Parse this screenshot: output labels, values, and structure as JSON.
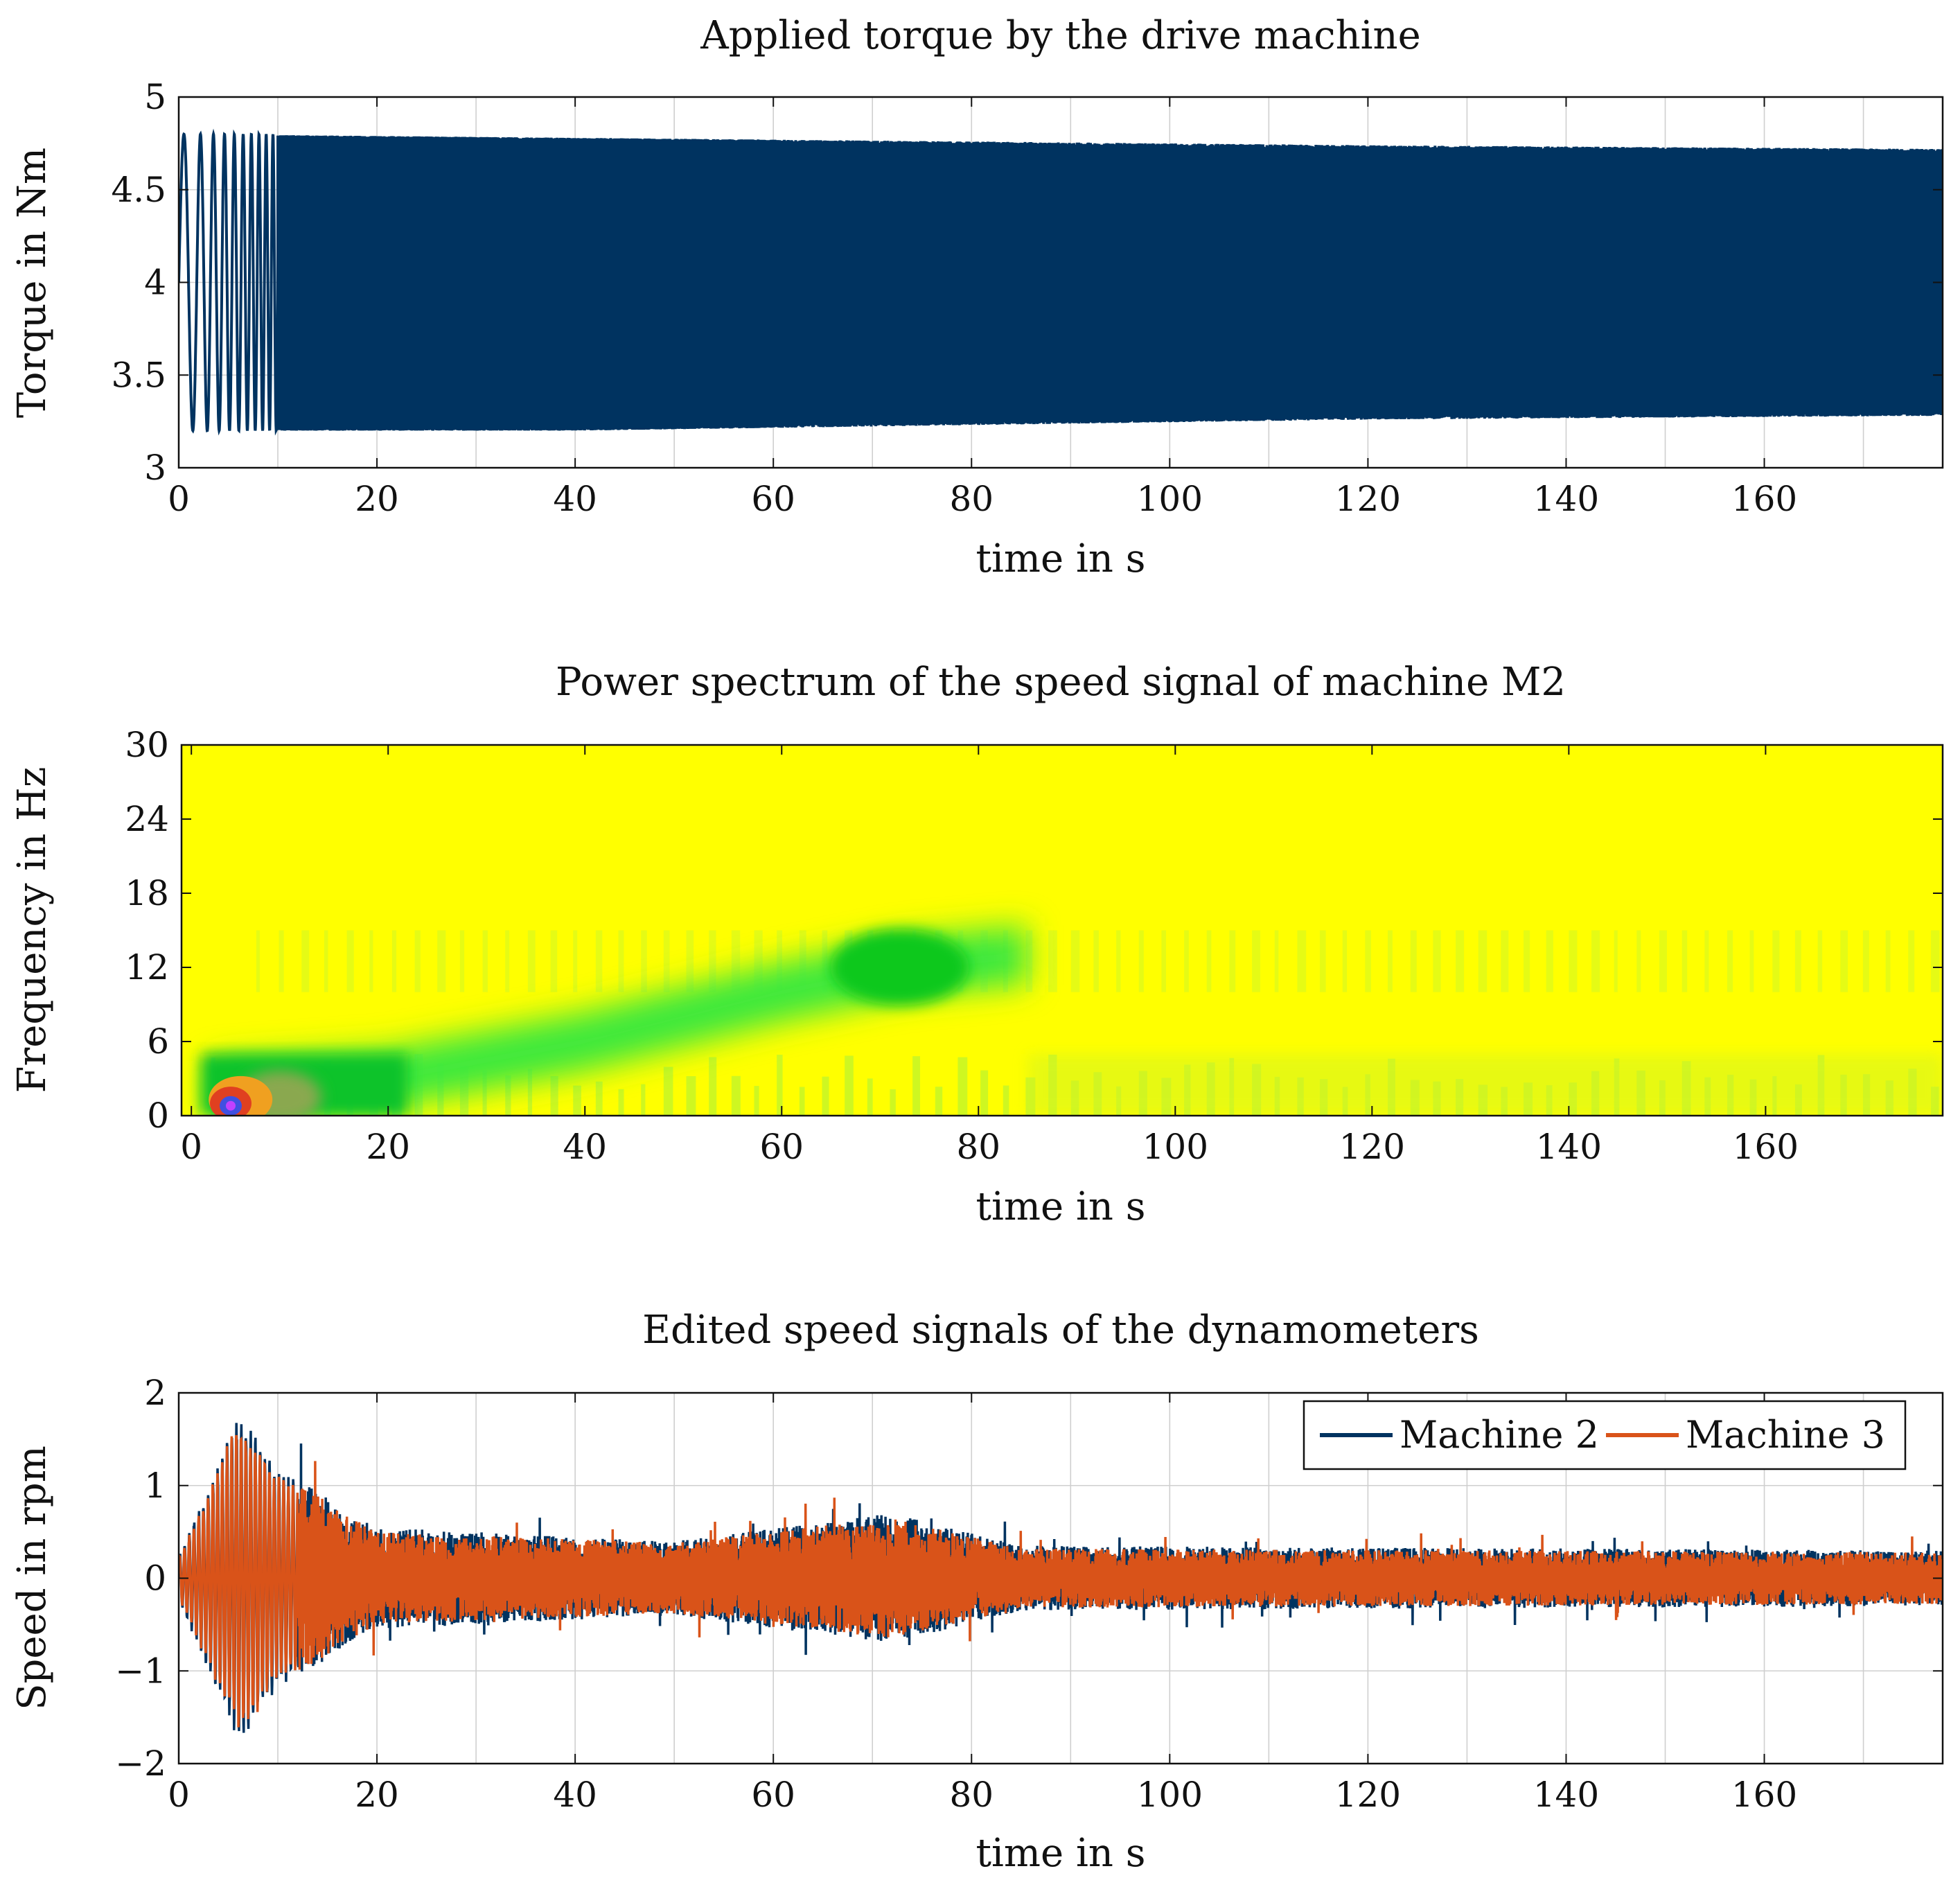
{
  "chart_data": [
    {
      "type": "line",
      "title": "Applied torque by the drive machine",
      "xlabel": "time in s",
      "ylabel": "Torque in Nm",
      "xlim": [
        0,
        178
      ],
      "ylim": [
        3,
        5
      ],
      "xticks": [
        "0",
        "20",
        "40",
        "60",
        "80",
        "100",
        "120",
        "140",
        "160"
      ],
      "xtick_values": [
        0,
        20,
        40,
        60,
        80,
        100,
        120,
        140,
        160
      ],
      "yticks": [
        "3",
        "3.5",
        "4",
        "4.5",
        "5"
      ],
      "ytick_values": [
        3,
        3.5,
        4,
        4.5,
        5
      ],
      "grid": true,
      "series": [
        {
          "color": "#003360",
          "mean": 4.0,
          "envelope": [
            {
              "t": 0,
              "min": 3.2,
              "max": 4.8
            },
            {
              "t": 40,
              "min": 3.2,
              "max": 4.78
            },
            {
              "t": 80,
              "min": 3.23,
              "max": 4.76
            },
            {
              "t": 120,
              "min": 3.26,
              "max": 4.74
            },
            {
              "t": 178,
              "min": 3.28,
              "max": 4.72
            }
          ]
        }
      ]
    },
    {
      "type": "heatmap",
      "title": "Power spectrum of the speed signal of machine M2",
      "xlabel": "time in s",
      "ylabel": "Frequency in Hz",
      "xlim": [
        -1,
        178
      ],
      "ylim": [
        0,
        30
      ],
      "xticks": [
        "0",
        "20",
        "40",
        "60",
        "80",
        "100",
        "120",
        "140",
        "160"
      ],
      "xtick_values": [
        0,
        20,
        40,
        60,
        80,
        100,
        120,
        140,
        160
      ],
      "yticks": [
        "0",
        "6",
        "12",
        "18",
        "24",
        "30"
      ],
      "ytick_values": [
        0,
        6,
        12,
        18,
        24,
        30
      ],
      "background_color": "#ffff00",
      "ridge": [
        {
          "t": 2,
          "f": 2
        },
        {
          "t": 20,
          "f": 3
        },
        {
          "t": 40,
          "f": 6
        },
        {
          "t": 60,
          "f": 10
        },
        {
          "t": 72,
          "f": 12
        },
        {
          "t": 85,
          "f": 13
        }
      ],
      "hotspot": {
        "t": 4,
        "f": 1
      }
    },
    {
      "type": "line",
      "title": "Edited speed signals of the dynamometers",
      "xlabel": "time in s",
      "ylabel": "Speed in rpm",
      "xlim": [
        0,
        178
      ],
      "ylim": [
        -2,
        2
      ],
      "xticks": [
        "0",
        "20",
        "40",
        "60",
        "80",
        "100",
        "120",
        "140",
        "160"
      ],
      "xtick_values": [
        0,
        20,
        40,
        60,
        80,
        100,
        120,
        140,
        160
      ],
      "yticks": [
        "−2",
        "−1",
        "0",
        "1",
        "2"
      ],
      "ytick_values": [
        -2,
        -1,
        0,
        1,
        2
      ],
      "grid": true,
      "legend_position": "top-right",
      "series": [
        {
          "name": "Machine 2",
          "color": "#003360",
          "envelope": [
            {
              "t": 0,
              "amp": 0.25
            },
            {
              "t": 3,
              "amp": 1.0
            },
            {
              "t": 6,
              "amp": 1.8
            },
            {
              "t": 10,
              "amp": 1.2
            },
            {
              "t": 20,
              "amp": 0.55
            },
            {
              "t": 50,
              "amp": 0.4
            },
            {
              "t": 72,
              "amp": 0.7
            },
            {
              "t": 85,
              "amp": 0.35
            },
            {
              "t": 178,
              "amp": 0.3
            }
          ]
        },
        {
          "name": "Machine 3",
          "color": "#d95319",
          "envelope": [
            {
              "t": 0,
              "amp": 0.22
            },
            {
              "t": 3,
              "amp": 0.95
            },
            {
              "t": 6,
              "amp": 1.75
            },
            {
              "t": 10,
              "amp": 1.15
            },
            {
              "t": 20,
              "amp": 0.5
            },
            {
              "t": 50,
              "amp": 0.38
            },
            {
              "t": 72,
              "amp": 0.65
            },
            {
              "t": 85,
              "amp": 0.32
            },
            {
              "t": 178,
              "amp": 0.28
            }
          ]
        }
      ]
    }
  ]
}
